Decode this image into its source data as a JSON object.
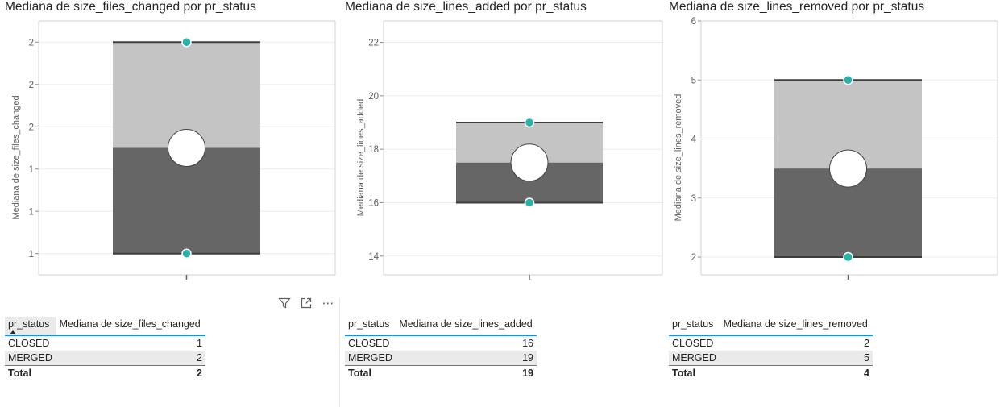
{
  "colors": {
    "upper": "#c4c4c4",
    "lower": "#666666",
    "line": "#3d3d3d",
    "dot": "#27b3a8",
    "grid": "#ebebeb",
    "frame": "#d0d0d0"
  },
  "toolbar": {
    "icons": [
      "filter-icon",
      "focus-mode-icon",
      "more-options-icon"
    ],
    "more_label": "⋯"
  },
  "panels": [
    {
      "title": "Mediana de size_files_changed por pr_status",
      "chart_data": {
        "type": "box",
        "ylabel": "Mediana de size_files_changed",
        "ylim": [
          0.9,
          2.1
        ],
        "yticks": [
          1.0,
          1.2,
          1.4,
          1.6,
          1.8,
          2.0,
          2.2
        ],
        "ytick_labels": [
          "1",
          "1",
          "1",
          "2",
          "2",
          "2",
          "2"
        ],
        "min": 1,
        "median": 1.5,
        "max": 2,
        "points": [
          {
            "status": "CLOSED",
            "value": 1
          },
          {
            "status": "MERGED",
            "value": 2
          }
        ]
      },
      "table": {
        "headers": [
          "pr_status",
          "Mediana de size_files_changed"
        ],
        "rows": [
          [
            "CLOSED",
            "1"
          ],
          [
            "MERGED",
            "2"
          ]
        ],
        "total": [
          "Total",
          "2"
        ]
      }
    },
    {
      "title": "Mediana de size_lines_added por pr_status",
      "chart_data": {
        "type": "box",
        "ylabel": "Mediana de size_lines_added",
        "ylim": [
          13.3,
          22.8
        ],
        "yticks": [
          14,
          16,
          18,
          20,
          22
        ],
        "ytick_labels": [
          "14",
          "16",
          "18",
          "20",
          "22"
        ],
        "min": 16,
        "median": 17.5,
        "max": 19,
        "points": [
          {
            "status": "CLOSED",
            "value": 16
          },
          {
            "status": "MERGED",
            "value": 19
          }
        ]
      },
      "table": {
        "headers": [
          "pr_status",
          "Mediana de size_lines_added"
        ],
        "rows": [
          [
            "CLOSED",
            "16"
          ],
          [
            "MERGED",
            "19"
          ]
        ],
        "total": [
          "Total",
          "19"
        ]
      }
    },
    {
      "title": "Mediana de size_lines_removed por pr_status",
      "chart_data": {
        "type": "box",
        "ylabel": "Mediana de size_lines_removed",
        "ylim": [
          1.7,
          6.0
        ],
        "yticks": [
          2,
          3,
          4,
          5,
          6
        ],
        "ytick_labels": [
          "2",
          "3",
          "4",
          "5",
          "6"
        ],
        "min": 2,
        "median": 3.5,
        "max": 5,
        "points": [
          {
            "status": "CLOSED",
            "value": 2
          },
          {
            "status": "MERGED",
            "value": 5
          }
        ]
      },
      "table": {
        "headers": [
          "pr_status",
          "Mediana de size_lines_removed"
        ],
        "rows": [
          [
            "CLOSED",
            "2"
          ],
          [
            "MERGED",
            "5"
          ]
        ],
        "total": [
          "Total",
          "4"
        ]
      }
    }
  ]
}
